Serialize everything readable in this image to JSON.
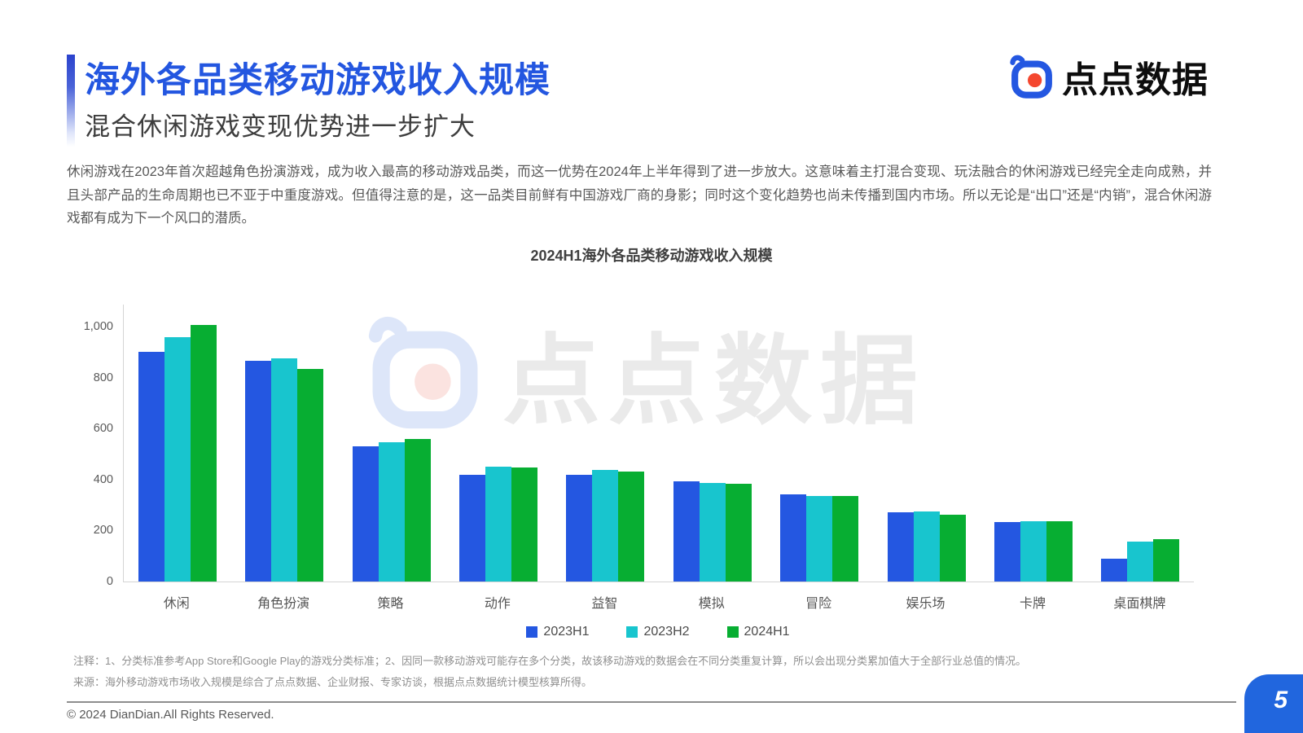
{
  "page": {
    "title": "海外各品类移动游戏收入规模",
    "subtitle": "混合休闲游戏变现优势进一步扩大",
    "body_text": "休闲游戏在2023年首次超越角色扮演游戏，成为收入最高的移动游戏品类，而这一优势在2024年上半年得到了进一步放大。这意味着主打混合变现、玩法融合的休闲游戏已经完全走向成熟，并且头部产品的生命周期也已不亚于中重度游戏。但值得注意的是，这一品类目前鲜有中国游戏厂商的身影；同时这个变化趋势也尚未传播到国内市场。所以无论是“出口”还是“内销”，混合休闲游戏都有成为下一个风口的潜质。",
    "note_line1": "注释：1、分类标准参考App Store和Google Play的游戏分类标准；2、因同一款移动游戏可能存在多个分类，故该移动游戏的数据会在不同分类重复计算，所以会出现分类累加值大于全部行业总值的情况。",
    "note_line2": "来源：海外移动游戏市场收入规模是综合了点点数据、企业财报、专家访谈，根据点点数据统计模型核算所得。",
    "copyright": "© 2024 DianDian.All Rights Reserved.",
    "page_number": "5"
  },
  "logo": {
    "brand_text": "点点数据"
  },
  "watermark": {
    "brand_text": "点点数据"
  },
  "colors": {
    "title_blue": "#2356E0",
    "page_box_blue": "#2166DE",
    "bar_blue": "#2457E1",
    "bar_cyan": "#18C5CE",
    "bar_green": "#07AE32"
  },
  "chart_data": {
    "type": "bar",
    "title": "2024H1海外各品类移动游戏收入规模",
    "categories": [
      "休闲",
      "角色扮演",
      "策略",
      "动作",
      "益智",
      "模拟",
      "冒险",
      "娱乐场",
      "卡牌",
      "桌面棋牌"
    ],
    "series": [
      {
        "name": "2023H1",
        "color": "#2457E1",
        "values": [
          900,
          865,
          530,
          420,
          420,
          392,
          343,
          272,
          234,
          88
        ]
      },
      {
        "name": "2023H2",
        "color": "#18C5CE",
        "values": [
          960,
          875,
          545,
          450,
          437,
          388,
          337,
          276,
          235,
          157
        ]
      },
      {
        "name": "2024H1",
        "color": "#07AE32",
        "values": [
          1005,
          835,
          560,
          447,
          430,
          384,
          334,
          263,
          238,
          165
        ]
      }
    ],
    "xlabel": "",
    "ylabel": "",
    "ylim": [
      0,
      1000
    ],
    "ytick_values": [
      0,
      200,
      400,
      600,
      800,
      1000
    ],
    "yticks": [
      "0",
      "200",
      "400",
      "600",
      "800",
      "1,000"
    ],
    "grid": false,
    "legend_position": "bottom"
  }
}
